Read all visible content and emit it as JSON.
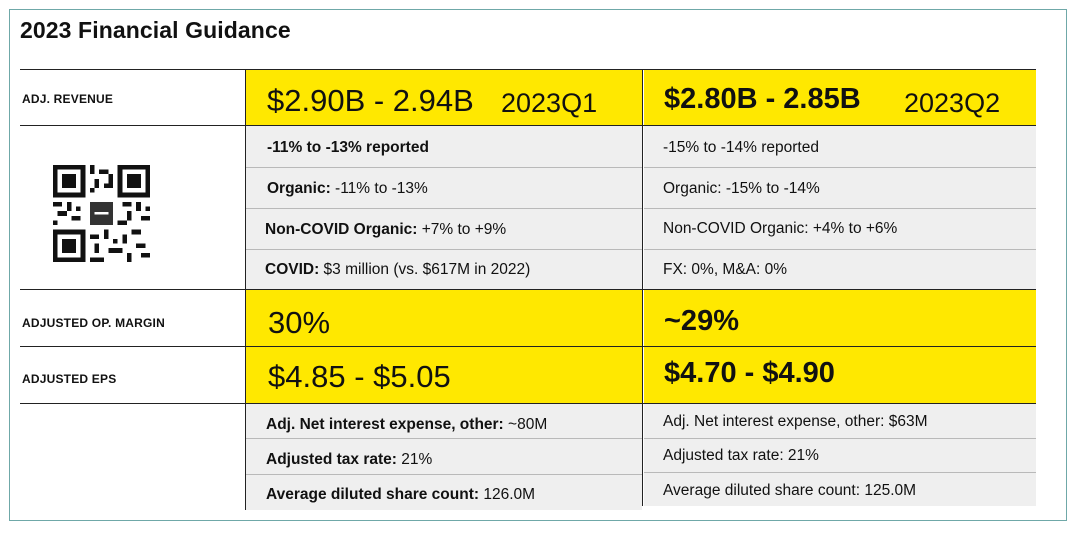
{
  "title": "2023 Financial Guidance",
  "row_labels": {
    "revenue": "ADJ. REVENUE",
    "op_margin": "ADJUSTED OP. MARGIN",
    "eps": "ADJUSTED EPS"
  },
  "q1": {
    "period": "2023Q1",
    "revenue": "$2.90B - 2.94B",
    "reported": "-11% to -13% reported",
    "organic_label": "Organic:",
    "organic_value": " -11% to -13%",
    "noncovid_label": "Non-COVID Organic:",
    "noncovid_value": " +7% to +9%",
    "covid_label": "COVID:",
    "covid_value": " $3 million (vs. $617M in 2022)",
    "op_margin": "30%",
    "eps": "$4.85 - $5.05",
    "interest_label": "Adj. Net interest expense, other:",
    "interest_value": " ~80M",
    "tax_label": "Adjusted tax rate:",
    "tax_value": " 21%",
    "shares_label": "Average diluted share count:",
    "shares_value": " 126.0M"
  },
  "q2": {
    "period": "2023Q2",
    "revenue": "$2.80B - 2.85B",
    "reported": "-15% to -14% reported",
    "organic": "Organic:  -15% to -14%",
    "noncovid": "Non-COVID Organic: +4% to +6%",
    "fx": "FX: 0%, M&A: 0%",
    "op_margin": "~29%",
    "eps": "$4.70 - $4.90",
    "interest": "Adj. Net interest expense, other: $63M",
    "tax": "Adjusted tax rate: 21%",
    "shares": "Average diluted share count: 125.0M"
  },
  "colors": {
    "highlight": "#ffe800",
    "cell_gray": "#efefef",
    "frame": "#6fa8a8"
  },
  "icons": [
    "qr-code-icon"
  ]
}
